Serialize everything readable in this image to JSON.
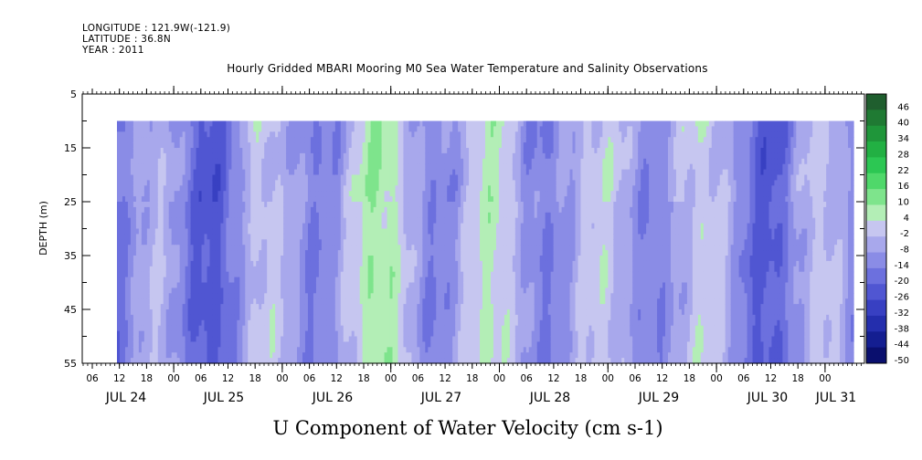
{
  "header": {
    "longitude": "LONGITUDE : 121.9W(-121.9)",
    "latitude": "LATITUDE : 36.8N",
    "year": "YEAR : 2011",
    "title": "Hourly Gridded MBARI Mooring M0 Sea Water Temperature and Salinity Observations"
  },
  "chart_data": {
    "type": "heatmap",
    "title": "Hourly Gridded MBARI Mooring M0 Sea Water Temperature and Salinity Observations",
    "xlabel": "U Component of Water Velocity (cm s-1)",
    "ylabel": "DEPTH (m)",
    "y_axis": {
      "range": [
        5,
        55
      ],
      "inverted": true,
      "ticks": [
        5,
        15,
        25,
        35,
        45,
        55
      ]
    },
    "x_axis": {
      "hour_ticks": [
        "06",
        "12",
        "18",
        "00",
        "06",
        "12",
        "18",
        "00",
        "06",
        "12",
        "18",
        "00",
        "06",
        "12",
        "18",
        "00",
        "06",
        "12",
        "18",
        "00",
        "06",
        "12",
        "18",
        "00",
        "06",
        "12",
        "18",
        "00"
      ],
      "date_labels": [
        "JUL 24",
        "JUL 25",
        "JUL 26",
        "JUL 27",
        "JUL 28",
        "JUL 29",
        "JUL 30",
        "JUL 31"
      ]
    },
    "data_depth_range": [
      10,
      55
    ],
    "colorbar": {
      "levels": [
        46,
        40,
        34,
        28,
        22,
        16,
        10,
        4,
        -2,
        -8,
        -14,
        -20,
        -26,
        -32,
        -38,
        -44,
        -50
      ],
      "range": [
        -50,
        52
      ],
      "colors": [
        "#1f5e2e",
        "#1f7a33",
        "#1f963a",
        "#22b043",
        "#2cc753",
        "#4fd86a",
        "#7ee48c",
        "#b3eeb6",
        "#c6c6f0",
        "#a8a8ec",
        "#8a8ce6",
        "#6c70de",
        "#5056d2",
        "#3840c2",
        "#242ead",
        "#141e91",
        "#0a0f6e"
      ]
    },
    "grid": false
  }
}
